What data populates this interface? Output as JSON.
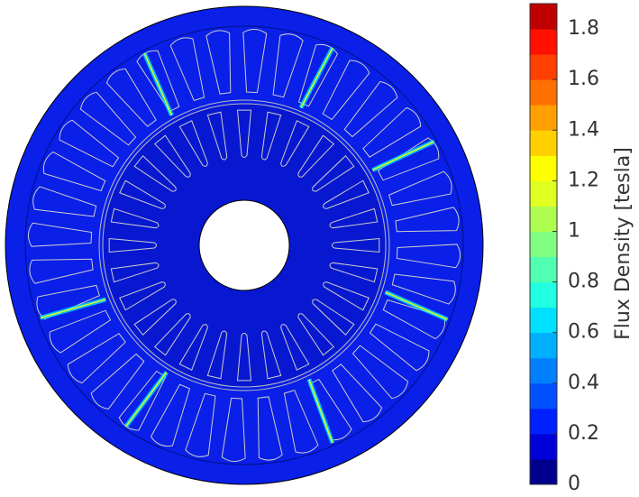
{
  "chart_data": {
    "type": "contour",
    "colorbar": {
      "label": "Flux Density [tesla]",
      "lim": [
        0,
        1.9
      ],
      "ticks": [
        0,
        0.2,
        0.4,
        0.6,
        0.8,
        1,
        1.2,
        1.4,
        1.6,
        1.8
      ],
      "colors": [
        "#00008f",
        "#0000d8",
        "#0020ff",
        "#0050ff",
        "#0080ff",
        "#00b0ff",
        "#00e0ff",
        "#20ffdf",
        "#50ffaf",
        "#80ff80",
        "#afff50",
        "#dfff20",
        "#ffff00",
        "#ffd000",
        "#ffa000",
        "#ff7000",
        "#ff4000",
        "#ff1000",
        "#c00000"
      ]
    }
  }
}
